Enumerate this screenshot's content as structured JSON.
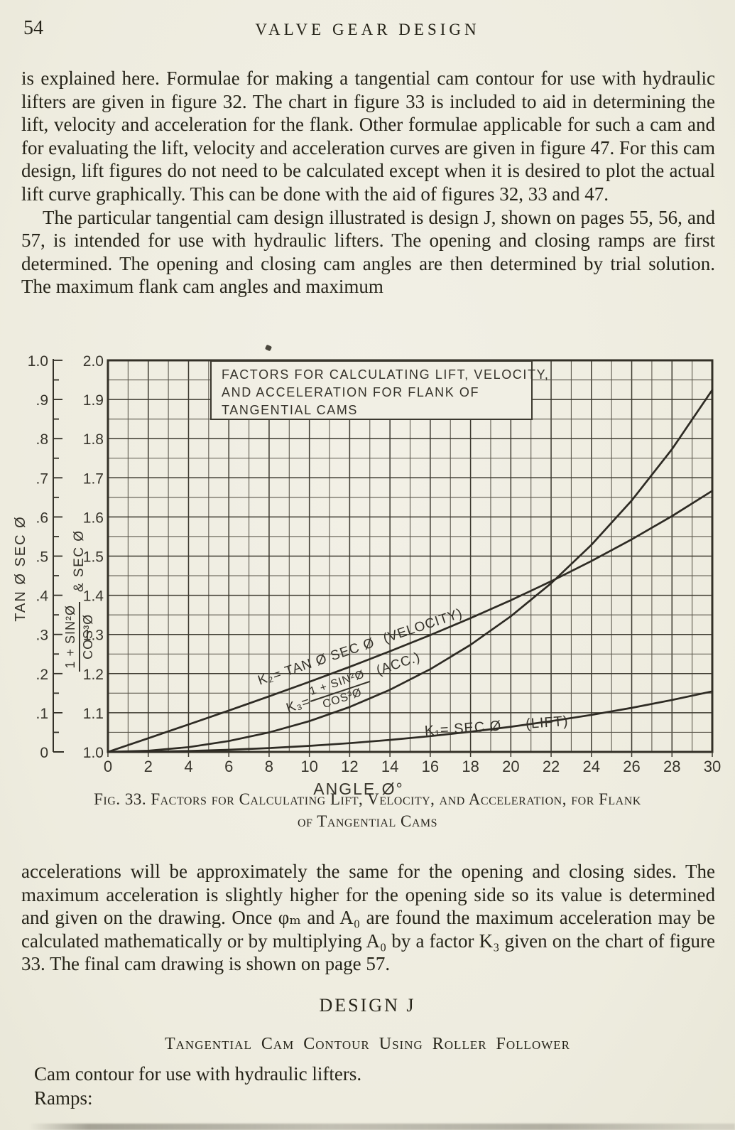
{
  "page": {
    "number": "54",
    "running_head": "VALVE GEAR DESIGN"
  },
  "paragraphs": {
    "p1": "is explained here.  Formulae for making a tangential cam contour for use with hydraulic lifters are given in figure 32.  The chart in figure 33 is included to aid in determining the lift, velocity and acceleration for the flank.  Other formulae applicable for such a cam and for evaluating the lift, velocity and acceleration curves are given in figure 47.  For this cam design, lift figures do not need to be calculated except when it is desired to plot the actual lift curve graphically.  This can be done with the aid of figures 32, 33 and 47.",
    "p2": "The particular tangential cam design illustrated is design J, shown on pages 55, 56, and 57, is intended for use with hydraulic lifters.  The opening and closing ramps are first determined.  The opening and closing cam angles are then determined by trial solution.  The maximum flank cam angles and maximum",
    "p3": "accelerations will be approximately the same for the opening and closing sides.  The maximum acceleration is slightly higher for the opening side so its value is determined and given on the drawing.  Once φₘ and A₀ are found the maximum acceleration may be calculated mathematically or by multiplying A₀ by a factor K₃ given on the chart of figure 33.  The final cam drawing is shown on page 57."
  },
  "figure": {
    "caption_line1": "Fig. 33. Factors for Calculating Lift, Velocity, and Acceleration, for Flank",
    "caption_line2": "of Tangential Cams"
  },
  "design_section": {
    "heading": "DESIGN J",
    "subheading": "Tangential Cam Contour Using Roller Follower",
    "body_line1": "Cam contour for use with hydraulic lifters.",
    "body_line2": "Ramps:"
  },
  "chart_data": {
    "type": "line",
    "title_box": [
      "FACTORS FOR CALCULATING LIFT, VELOCITY,",
      "AND ACCELERATION FOR FLANK OF",
      "TANGENTIAL CAMS"
    ],
    "xlabel": "ANGLE Ø°",
    "x_range": [
      0,
      30
    ],
    "x": [
      0,
      2,
      4,
      6,
      8,
      10,
      12,
      14,
      16,
      18,
      20,
      22,
      24,
      26,
      28,
      30
    ],
    "x_tick_labels": [
      "0",
      "2",
      "4",
      "6",
      "8",
      "10",
      "12",
      "14",
      "16",
      "18",
      "20",
      "22",
      "24",
      "26",
      "28",
      "30"
    ],
    "grid": {
      "x_minor_step": 1,
      "x_major_step": 2,
      "y_minor_step": 0.05,
      "y_major_step": 0.1
    },
    "axes": {
      "outer_left": {
        "title": "TAN Ø SEC Ø",
        "range": [
          0,
          1
        ],
        "tick_labels_top_to_bottom": [
          "1.0",
          ".9",
          ".8",
          ".7",
          ".6",
          ".5",
          ".4",
          ".3",
          ".2",
          ".1",
          "0"
        ]
      },
      "inner_left": {
        "title_numerator": "1 + SIN²Ø",
        "title_denominator": "COS³Ø",
        "title_suffix": "& SEC Ø",
        "range": [
          1,
          2
        ],
        "tick_labels_top_to_bottom": [
          "2.0",
          "1.9",
          "1.8",
          "1.7",
          "1.6",
          "1.5",
          "1.4",
          "1.3",
          "1.2",
          "1.1",
          "1.0"
        ]
      }
    },
    "series": [
      {
        "id": "lift",
        "axis": "inner_left",
        "label_k": "K₁= SEC Ø",
        "tag": "(LIFT)",
        "values": [
          1.0,
          1.0006,
          1.0024,
          1.0055,
          1.0098,
          1.0154,
          1.0223,
          1.0306,
          1.0403,
          1.0515,
          1.0642,
          1.0785,
          1.0946,
          1.1126,
          1.1326,
          1.1547
        ]
      },
      {
        "id": "velocity",
        "axis": "outer_left",
        "label_k": "K₂= TAN Ø SEC Ø",
        "tag": "(VELOCITY)",
        "values": [
          0.0,
          0.0349,
          0.0701,
          0.1057,
          0.1419,
          0.179,
          0.2173,
          0.257,
          0.2983,
          0.3416,
          0.3873,
          0.4358,
          0.4874,
          0.5427,
          0.6022,
          0.6667
        ]
      },
      {
        "id": "acc",
        "axis": "inner_left",
        "label_k": "K₃=",
        "numerator": "1 + SIN²Ø",
        "denominator": "COS³Ø",
        "tag": "(ACC.)",
        "values": [
          1.0,
          1.0031,
          1.0122,
          1.0277,
          1.0497,
          1.0786,
          1.1147,
          1.1587,
          1.2113,
          1.2735,
          1.3462,
          1.4307,
          1.5287,
          1.642,
          1.7731,
          1.9245
        ]
      }
    ]
  }
}
